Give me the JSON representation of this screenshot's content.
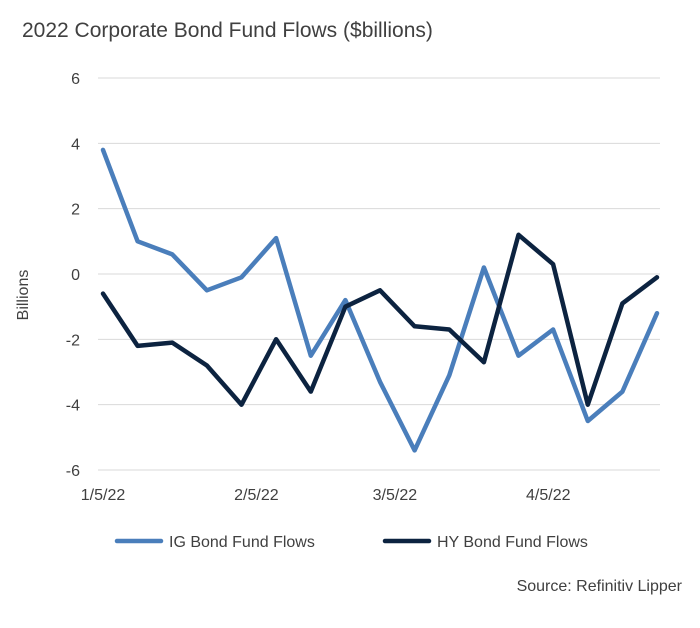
{
  "chart_data": {
    "type": "line",
    "title": "2022 Corporate Bond Fund Flows ($billions)",
    "xlabel": "",
    "ylabel": "Billions",
    "ylim": [
      -6,
      6
    ],
    "yticks": [
      6,
      4,
      2,
      0,
      -2,
      -4,
      -6
    ],
    "x": [
      "1/5/22",
      "1/12/22",
      "1/19/22",
      "1/26/22",
      "2/2/22",
      "2/9/22",
      "2/16/22",
      "2/23/22",
      "3/2/22",
      "3/9/22",
      "3/16/22",
      "3/23/22",
      "3/30/22",
      "4/6/22",
      "4/13/22",
      "4/20/22",
      "4/27/22"
    ],
    "xtick_labels": [
      {
        "index": 0,
        "label": "1/5/22"
      },
      {
        "index": 4.43,
        "label": "2/5/22"
      },
      {
        "index": 8.43,
        "label": "3/5/22"
      },
      {
        "index": 12.86,
        "label": "4/5/22"
      }
    ],
    "grid": true,
    "legend_position": "bottom",
    "series": [
      {
        "name": "IG Bond Fund Flows",
        "color": "#4a7ebb",
        "values": [
          3.8,
          1.0,
          0.6,
          -0.5,
          -0.1,
          1.1,
          -2.5,
          -0.8,
          -3.3,
          -5.4,
          -3.1,
          0.2,
          -2.5,
          -1.7,
          -4.5,
          -3.6,
          -1.2
        ]
      },
      {
        "name": "HY Bond Fund Flows",
        "color": "#0c2340",
        "values": [
          -0.6,
          -2.2,
          -2.1,
          -2.8,
          -4.0,
          -2.0,
          -3.6,
          -1.0,
          -0.5,
          -1.6,
          -1.7,
          -2.7,
          1.2,
          0.3,
          -4.0,
          -0.9,
          -0.1
        ]
      }
    ]
  },
  "source_text": "Source: Refinitiv Lipper"
}
